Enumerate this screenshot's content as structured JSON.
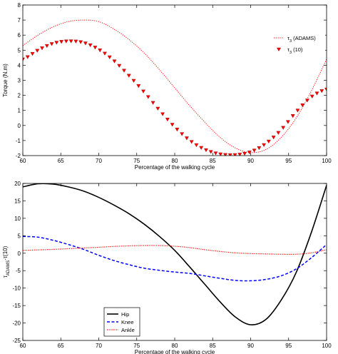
{
  "chart_data": [
    {
      "type": "line",
      "xlabel": "Percentage of the walking cycle",
      "ylabel": "Torque (N.m)",
      "xlim": [
        60,
        100
      ],
      "ylim": [
        -2,
        8
      ],
      "xticks": [
        60,
        65,
        70,
        75,
        80,
        85,
        90,
        95,
        100
      ],
      "yticks": [
        -2,
        -1,
        0,
        1,
        2,
        3,
        4,
        5,
        6,
        7,
        8
      ],
      "legend_position": "right",
      "grid": false,
      "series": [
        {
          "name": "τ3 (ADAMS)",
          "label_main": "τ",
          "label_sub": "3",
          "label_rest": " (ADAMS)",
          "style": "dotted-line",
          "color": "#ff0000",
          "x": [
            60,
            62,
            64,
            66,
            68,
            70,
            72,
            74,
            76,
            78,
            80,
            82,
            84,
            86,
            88,
            90,
            92,
            94,
            96,
            98,
            100
          ],
          "y": [
            5.3,
            6.0,
            6.55,
            6.9,
            7.0,
            6.9,
            6.4,
            5.7,
            4.8,
            3.7,
            2.5,
            1.3,
            0.2,
            -0.8,
            -1.5,
            -1.8,
            -1.6,
            -0.8,
            0.5,
            2.3,
            4.4
          ]
        },
        {
          "name": "τ3 (10)",
          "label_main": "τ",
          "label_sub": "3",
          "label_rest": " (10)",
          "style": "triangle-markers",
          "color": "#ff0000",
          "x": [
            60,
            62,
            64,
            66,
            68,
            70,
            72,
            74,
            76,
            78,
            80,
            82,
            84,
            86,
            88,
            90,
            92,
            94,
            96,
            98,
            100
          ],
          "y": [
            4.4,
            5.0,
            5.45,
            5.6,
            5.5,
            5.05,
            4.3,
            3.3,
            2.2,
            1.0,
            -0.1,
            -1.0,
            -1.6,
            -1.9,
            -1.95,
            -1.75,
            -1.2,
            -0.3,
            0.9,
            1.9,
            2.4
          ]
        }
      ]
    },
    {
      "type": "line",
      "xlabel": "Percentage of the walking cycle",
      "ylabel": "τ_ADAMS-τ(10)",
      "ylabel_main": "τ",
      "ylabel_sub": "ADAMS",
      "ylabel_rest": "-τ(10)",
      "xlim": [
        60,
        100
      ],
      "ylim": [
        -25,
        20
      ],
      "xticks": [
        60,
        65,
        70,
        75,
        80,
        85,
        90,
        95,
        100
      ],
      "yticks": [
        -25,
        -20,
        -15,
        -10,
        -5,
        0,
        5,
        10,
        15,
        20
      ],
      "legend_position": "lower-left",
      "grid": false,
      "series": [
        {
          "name": "Hip",
          "style": "solid",
          "color": "#000000",
          "x": [
            60,
            62,
            64,
            66,
            68,
            70,
            72,
            74,
            76,
            78,
            80,
            82,
            84,
            86,
            88,
            90,
            92,
            94,
            96,
            98,
            100
          ],
          "y": [
            19.0,
            19.9,
            19.8,
            19.0,
            17.8,
            16.0,
            13.8,
            11.3,
            8.3,
            4.8,
            0.8,
            -4.0,
            -9.0,
            -14.0,
            -18.3,
            -20.5,
            -19.0,
            -13.5,
            -5.5,
            6.0,
            19.5
          ]
        },
        {
          "name": "Knee",
          "style": "dashed",
          "color": "#0000ff",
          "x": [
            60,
            62,
            64,
            66,
            68,
            70,
            72,
            74,
            76,
            78,
            80,
            82,
            84,
            86,
            88,
            90,
            92,
            94,
            96,
            98,
            100
          ],
          "y": [
            4.8,
            4.6,
            3.7,
            2.5,
            1.1,
            -0.6,
            -2.1,
            -3.3,
            -4.3,
            -4.9,
            -5.4,
            -5.8,
            -6.5,
            -7.2,
            -7.8,
            -7.9,
            -7.5,
            -6.5,
            -4.5,
            -1.3,
            2.5
          ]
        },
        {
          "name": "Ankle",
          "style": "dotted",
          "color": "#ff0000",
          "x": [
            60,
            62,
            64,
            66,
            68,
            70,
            72,
            74,
            76,
            78,
            80,
            82,
            84,
            86,
            88,
            90,
            92,
            94,
            96,
            98,
            100
          ],
          "y": [
            0.8,
            0.95,
            1.1,
            1.3,
            1.5,
            1.7,
            1.95,
            2.1,
            2.2,
            2.2,
            2.0,
            1.6,
            1.0,
            0.5,
            0.1,
            -0.1,
            -0.2,
            -0.3,
            -0.3,
            0.1,
            1.0
          ]
        }
      ]
    }
  ]
}
